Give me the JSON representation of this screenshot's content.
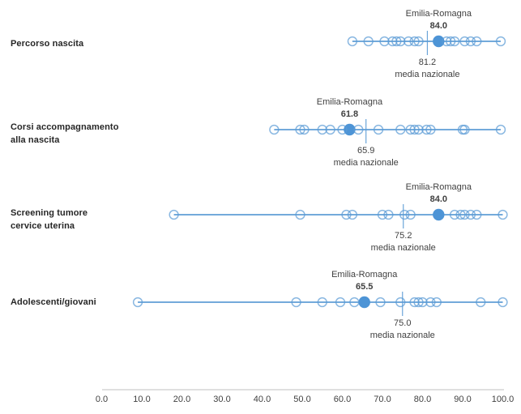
{
  "chart_data": {
    "type": "scatter",
    "orientation": "horizontal-dot-plot",
    "axis": {
      "min": 0,
      "max": 100,
      "tick_step": 10,
      "tick_labels": [
        "0.0",
        "10.0",
        "20.0",
        "30.0",
        "40.0",
        "50.0",
        "60.0",
        "70.0",
        "80.0",
        "90.0",
        "100.0"
      ]
    },
    "annotations": {
      "region_name": "Emilia-Romagna",
      "mean_name": "media nazionale"
    },
    "legend_position": "none",
    "grid": false,
    "rows": [
      {
        "label": "Percorso nascita",
        "label_lines": [
          "Percorso nascita"
        ],
        "emilia_romagna": 84.0,
        "er_label": "84.0",
        "media_nazionale": 81.2,
        "mean_label": "81.2",
        "points": [
          62.5,
          66.5,
          70.5,
          72.5,
          73.5,
          74.5,
          76.5,
          78.0,
          79.0,
          86.0,
          87.0,
          88.0,
          90.5,
          92.0,
          93.5,
          99.5
        ]
      },
      {
        "label": "Corsi accompagnamento alla nascita",
        "label_lines": [
          "Corsi accompagnamento",
          "alla nascita"
        ],
        "emilia_romagna": 61.8,
        "er_label": "61.8",
        "media_nazionale": 65.9,
        "mean_label": "65.9",
        "points": [
          43.0,
          49.5,
          50.5,
          55.0,
          57.0,
          60.0,
          64.0,
          69.0,
          74.5,
          77.0,
          78.0,
          79.0,
          81.0,
          82.0,
          90.0,
          90.5,
          99.5
        ]
      },
      {
        "label": "Screening tumore cervice uterina",
        "label_lines": [
          "Screening tumore",
          "cervice uterina"
        ],
        "emilia_romagna": 84.0,
        "er_label": "84.0",
        "media_nazionale": 75.2,
        "mean_label": "75.2",
        "points": [
          18.0,
          49.5,
          61.0,
          62.5,
          70.0,
          71.5,
          75.5,
          77.0,
          88.0,
          89.5,
          90.5,
          92.0,
          93.5,
          100.0
        ]
      },
      {
        "label": "Adolescenti/giovani",
        "label_lines": [
          "Adolescenti/giovani"
        ],
        "emilia_romagna": 65.5,
        "er_label": "65.5",
        "media_nazionale": 75.0,
        "mean_label": "75.0",
        "points": [
          9.0,
          48.5,
          55.0,
          59.5,
          63.0,
          69.5,
          74.5,
          78.0,
          79.0,
          80.0,
          82.0,
          83.5,
          94.5,
          100.0
        ]
      }
    ]
  },
  "colors": {
    "accent_blue": "#5B9BD5",
    "emilia_romagna_fill": "#4D94D6",
    "axis_line": "#BFBFBF",
    "annotation_text": "#404040",
    "row_label_text": "#262626"
  }
}
